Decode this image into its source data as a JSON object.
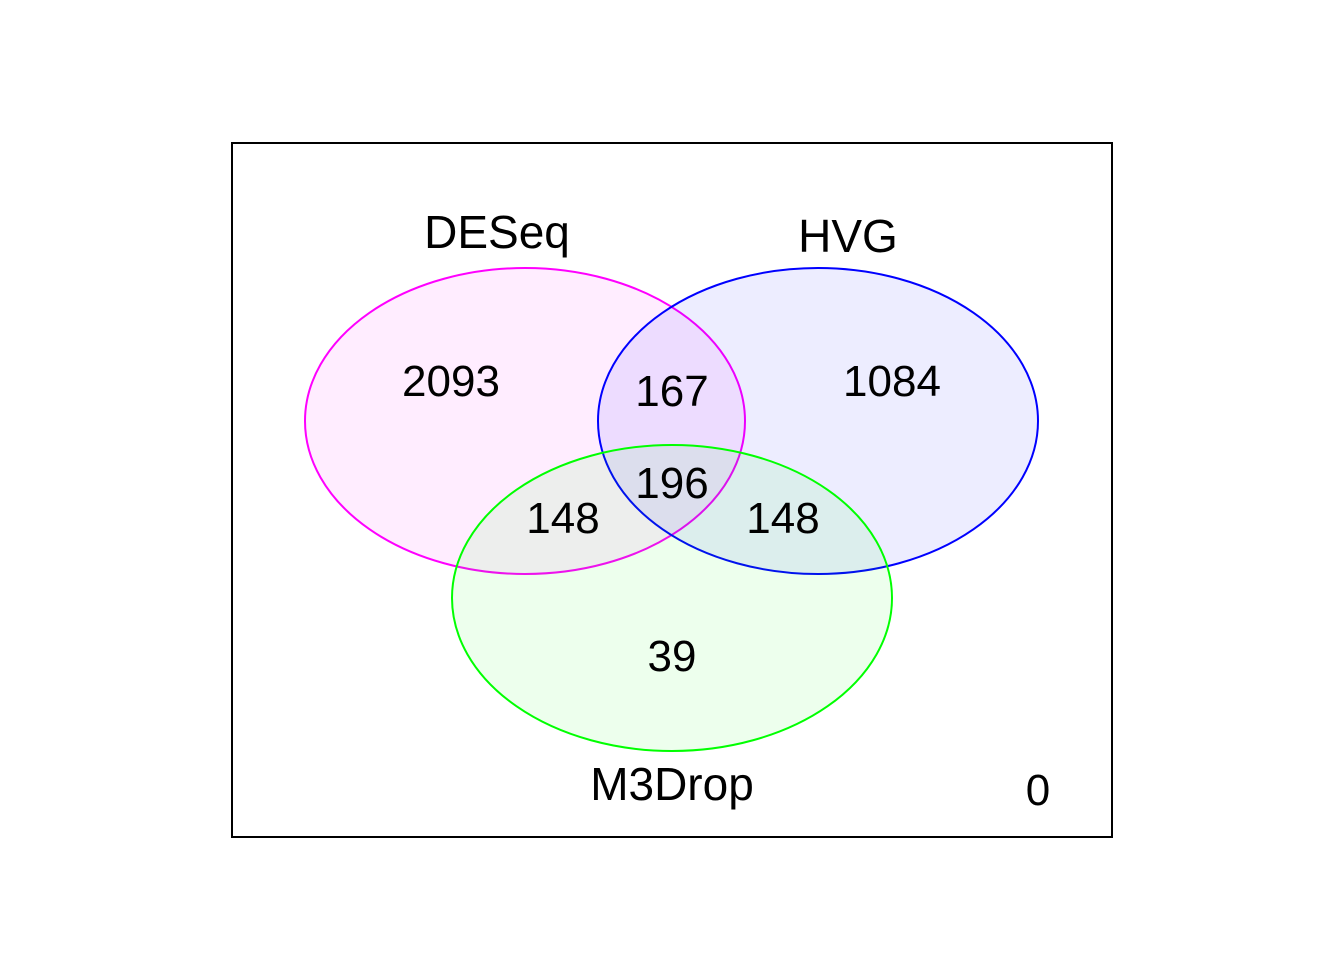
{
  "venn": {
    "sets": [
      {
        "name": "DESeq",
        "stroke": "#FF00FF",
        "fill": "#FF00FF"
      },
      {
        "name": "HVG",
        "stroke": "#0000FF",
        "fill": "#0000FF"
      },
      {
        "name": "M3Drop",
        "stroke": "#00FF00",
        "fill": "#00FF00"
      }
    ],
    "regions": {
      "deseq_only": "2093",
      "hvg_only": "1084",
      "m3drop_only": "39",
      "deseq_hvg": "167",
      "deseq_m3drop": "148",
      "hvg_m3drop": "148",
      "all_three": "196",
      "none": "0"
    },
    "fill_opacity": 0.07,
    "frame_color": "#000000"
  }
}
